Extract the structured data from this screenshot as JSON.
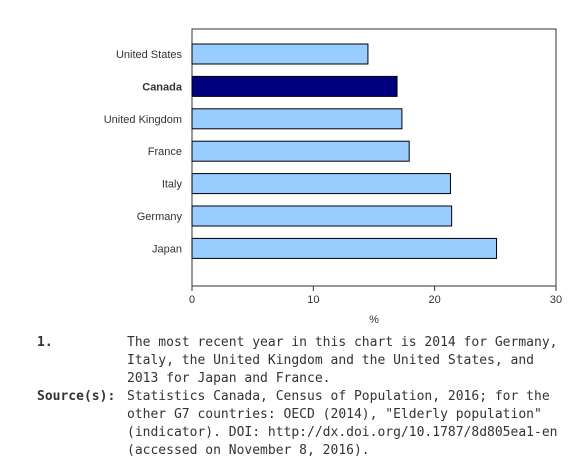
{
  "chart_data": {
    "type": "bar",
    "orientation": "horizontal",
    "categories": [
      "United States",
      "Canada",
      "United Kingdom",
      "France",
      "Italy",
      "Germany",
      "Japan"
    ],
    "values": [
      14.5,
      16.9,
      17.3,
      17.9,
      21.3,
      21.4,
      25.1
    ],
    "highlight": "Canada",
    "xlabel": "%",
    "ylabel": "",
    "xlim": [
      0,
      30
    ],
    "xticks": [
      "0",
      "10",
      "20",
      "30"
    ],
    "grid": false,
    "colors": {
      "bar": "#99ccff",
      "bar_highlight": "#000080",
      "bar_stroke": "#000000",
      "axis": "#333333"
    }
  },
  "notes": [
    {
      "label": "1.",
      "text": "The most recent year in this chart is 2014 for Germany, Italy, the United Kingdom and the United States, and 2013 for Japan and France."
    },
    {
      "label": "Source(s):",
      "text": "Statistics Canada, Census of Population, 2016; for the other G7 countries: OECD (2014), \"Elderly population\" (indicator). DOI: http://dx.doi.org/10.1787/8d805ea1-en (accessed on November 8, 2016)."
    }
  ]
}
